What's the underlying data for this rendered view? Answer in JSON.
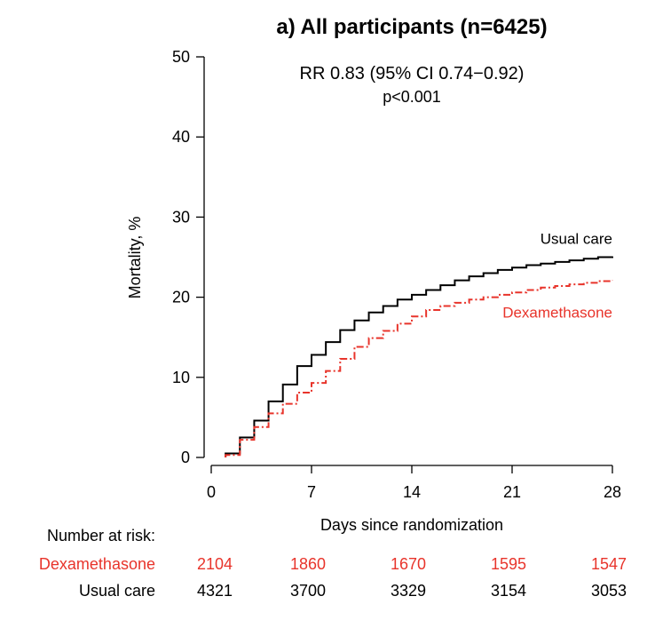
{
  "chart_data": {
    "type": "line",
    "title": "a) All participants (n=6425)",
    "annotation": {
      "rr": "RR 0.83 (95% CI 0.74−0.92)",
      "p": "p<0.001"
    },
    "xlabel": "Days since randomization",
    "ylabel": "Mortality, %",
    "xlim": [
      0,
      28
    ],
    "ylim": [
      0,
      50
    ],
    "xticks": [
      0,
      7,
      14,
      21,
      28
    ],
    "yticks": [
      0,
      10,
      20,
      30,
      40,
      50
    ],
    "grid": false,
    "series": [
      {
        "name": "Usual care",
        "color": "#000000",
        "style": "solid",
        "x": [
          1,
          2,
          3,
          4,
          5,
          6,
          7,
          8,
          9,
          10,
          11,
          12,
          13,
          14,
          15,
          16,
          17,
          18,
          19,
          20,
          21,
          22,
          23,
          24,
          25,
          26,
          27,
          28
        ],
        "y": [
          0.5,
          2.5,
          4.6,
          7.0,
          9.1,
          11.4,
          12.8,
          14.4,
          15.9,
          17.1,
          18.1,
          18.9,
          19.7,
          20.3,
          20.9,
          21.5,
          22.1,
          22.6,
          23.0,
          23.4,
          23.7,
          24.0,
          24.2,
          24.4,
          24.6,
          24.8,
          25.0,
          25.1
        ]
      },
      {
        "name": "Dexamethasone",
        "color": "#e8342b",
        "style": "dashdot",
        "x": [
          1,
          2,
          3,
          4,
          5,
          6,
          7,
          8,
          9,
          10,
          11,
          12,
          13,
          14,
          15,
          16,
          17,
          18,
          19,
          20,
          21,
          22,
          23,
          24,
          25,
          26,
          27,
          28
        ],
        "y": [
          0.3,
          2.2,
          3.8,
          5.5,
          6.7,
          8.1,
          9.3,
          10.8,
          12.3,
          13.8,
          14.9,
          15.8,
          16.7,
          17.6,
          18.4,
          18.9,
          19.3,
          19.7,
          20.0,
          20.3,
          20.6,
          20.9,
          21.2,
          21.4,
          21.6,
          21.8,
          22.0,
          22.1
        ]
      }
    ],
    "number_at_risk": {
      "heading": "Number at risk:",
      "days": [
        0,
        7,
        14,
        21,
        28
      ],
      "rows": [
        {
          "label": "Dexamethasone",
          "color": "#e8342b",
          "values": [
            "2104",
            "1860",
            "1670",
            "1595",
            "1547"
          ]
        },
        {
          "label": "Usual care",
          "color": "#000000",
          "values": [
            "4321",
            "3700",
            "3329",
            "3154",
            "3053"
          ]
        }
      ]
    }
  }
}
